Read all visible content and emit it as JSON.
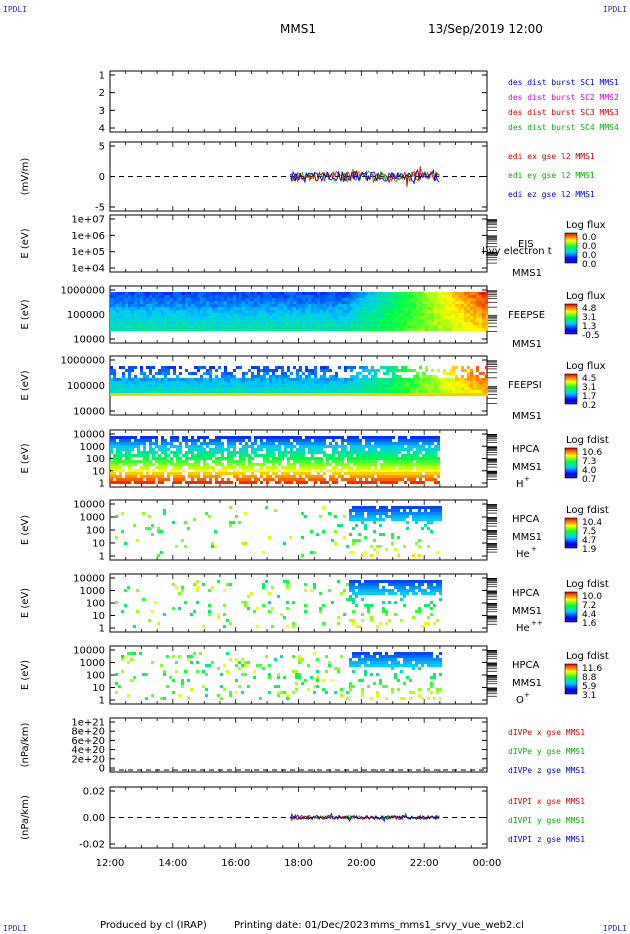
{
  "header": {
    "mission": "MMS1",
    "datetime": "13/Sep/2019 12:00",
    "corner_mark": "IPDLI"
  },
  "footer": {
    "produced_by": "Produced by cl (IRAP)",
    "printing_date": "Printing date: 01/Dec/2023",
    "filename": "mms_mms1_srvy_vue_web2.cl"
  },
  "colors": {
    "sc1": "#0000c8",
    "sc2": "#d000d0",
    "sc3": "#d00000",
    "sc4": "#00b000",
    "ex": "#d00000",
    "ey": "#00b000",
    "ez": "#0000c8"
  },
  "chart_data": {
    "type": "multi-panel time series",
    "time_axis": {
      "range": [
        "12:00",
        "00:00"
      ],
      "tick_labels": [
        "12:00",
        "14:00",
        "16:00",
        "18:00",
        "20:00",
        "22:00",
        "00:00"
      ],
      "data_coverage": [
        "17:45",
        "22:30"
      ]
    },
    "panels": [
      {
        "id": "sc-marker",
        "type": "line",
        "yticks": [
          "1",
          "2",
          "3",
          "4"
        ],
        "ylim": [
          0.7,
          4.3
        ],
        "ylabel": "",
        "legend": [
          {
            "label": "des dist burst SC1 MMS1",
            "color": "#0000c8"
          },
          {
            "label": "des dist burst SC2 MMS2",
            "color": "#d000d0"
          },
          {
            "label": "des dist burst SC3 MMS3",
            "color": "#d00000"
          },
          {
            "label": "des dist burst SC4 MMS4",
            "color": "#00b000"
          }
        ]
      },
      {
        "id": "edi-e",
        "type": "line",
        "yticks": [
          "5",
          "0",
          "-5"
        ],
        "ylim": [
          -7,
          7
        ],
        "ylabel": "(mV/m)",
        "legend": [
          {
            "label": "edi ex gse l2 MMS1",
            "color": "#d00000"
          },
          {
            "label": "edi ey gse l2 MMS1",
            "color": "#00b000"
          },
          {
            "label": "edi ez gse l2 MMS1",
            "color": "#0000c8"
          }
        ]
      },
      {
        "id": "eis",
        "type": "heatmap",
        "yticks": [
          "1e+07",
          "1e+06",
          "1e+05",
          "1e+04"
        ],
        "ylabel": "E (eV)",
        "instrument": "EIS",
        "spacecraft": "MMS1",
        "overlay_text": "l)vy electron t",
        "colorbar": {
          "title": "Log flux",
          "ticks": [
            "0.0",
            "0.0",
            "0.0",
            "0.0"
          ]
        }
      },
      {
        "id": "feepse",
        "type": "heatmap",
        "yticks": [
          "1000000",
          "100000",
          "10000"
        ],
        "ylabel": "E (eV)",
        "instrument": "FEEPSE",
        "spacecraft": "MMS1",
        "colorbar": {
          "title": "Log flux",
          "ticks": [
            "4.8",
            "3.1",
            "1.3",
            "-0.5"
          ]
        }
      },
      {
        "id": "feepsi",
        "type": "heatmap",
        "yticks": [
          "1000000",
          "100000",
          "10000"
        ],
        "ylabel": "E (eV)",
        "instrument": "FEEPSI",
        "spacecraft": "MMS1",
        "colorbar": {
          "title": "Log flux",
          "ticks": [
            "4.5",
            "3.1",
            "1.7",
            "0.2"
          ]
        }
      },
      {
        "id": "hpca-h",
        "type": "heatmap",
        "yticks": [
          "10000",
          "1000",
          "100",
          "10",
          "1"
        ],
        "ylabel": "E (eV)",
        "instrument": "HPCA",
        "spacecraft": "MMS1",
        "species": "H",
        "charge": "+",
        "colorbar": {
          "title": "Log fdist",
          "ticks": [
            "10.6",
            "7.3",
            "4.0",
            "0.7"
          ]
        }
      },
      {
        "id": "hpca-he",
        "type": "heatmap",
        "yticks": [
          "10000",
          "1000",
          "100",
          "10",
          "1"
        ],
        "ylabel": "E (eV)",
        "instrument": "HPCA",
        "spacecraft": "MMS1",
        "species": "He",
        "charge": "+",
        "colorbar": {
          "title": "Log fdist",
          "ticks": [
            "10.4",
            "7.5",
            "4.7",
            "1.9"
          ]
        }
      },
      {
        "id": "hpca-he2",
        "type": "heatmap",
        "yticks": [
          "10000",
          "1000",
          "100",
          "10",
          "1"
        ],
        "ylabel": "E (eV)",
        "instrument": "HPCA",
        "spacecraft": "MMS1",
        "species": "He",
        "charge": "++",
        "colorbar": {
          "title": "Log fdist",
          "ticks": [
            "10.0",
            "7.2",
            "4.4",
            "1.6"
          ]
        }
      },
      {
        "id": "hpca-o",
        "type": "heatmap",
        "yticks": [
          "10000",
          "1000",
          "100",
          "10",
          "1"
        ],
        "ylabel": "E (eV)",
        "instrument": "HPCA",
        "spacecraft": "MMS1",
        "species": "O",
        "charge": "+",
        "colorbar": {
          "title": "Log fdist",
          "ticks": [
            "11.6",
            "8.8",
            "5.9",
            "3.1"
          ]
        }
      },
      {
        "id": "divpe",
        "type": "line",
        "yticks": [
          "1e+21",
          "8e+20",
          "6e+20",
          "4e+20",
          "2e+20",
          "0"
        ],
        "ylim": [
          0,
          1e+21
        ],
        "ylabel": "(nPa/km)",
        "legend": [
          {
            "label": "dIVPe x gse MMS1",
            "color": "#d00000"
          },
          {
            "label": "dIVPe y gse MMS1",
            "color": "#00b000"
          },
          {
            "label": "dIVPe z gse MMS1",
            "color": "#0000c8"
          }
        ]
      },
      {
        "id": "divpi",
        "type": "line",
        "yticks": [
          "0.02",
          "0.00",
          "-0.02"
        ],
        "ylim": [
          -0.03,
          0.03
        ],
        "ylabel": "(nPa/km)",
        "legend": [
          {
            "label": "dIVPI x gse MMS1",
            "color": "#d00000"
          },
          {
            "label": "dIVPI y gse MMS1",
            "color": "#00b000"
          },
          {
            "label": "dIVPI z gse MMS1",
            "color": "#0000c8"
          }
        ]
      }
    ]
  }
}
